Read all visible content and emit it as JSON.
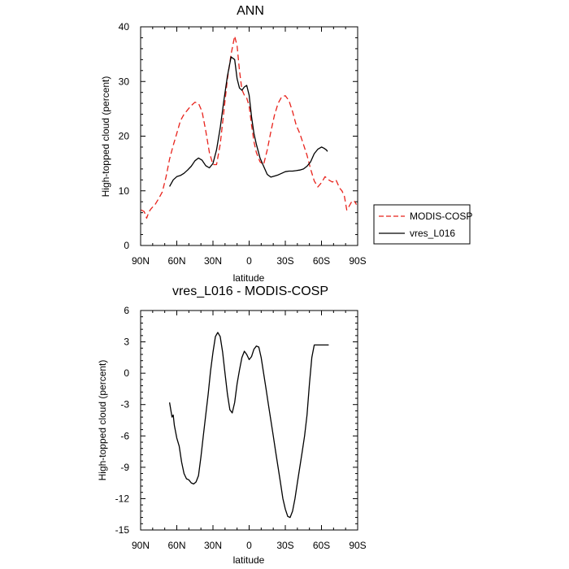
{
  "chart_data": [
    {
      "type": "line",
      "title": "ANN",
      "xlabel": "latitude",
      "ylabel": "High-topped cloud (percent)",
      "xlim": [
        90,
        -90
      ],
      "ylim": [
        0,
        40
      ],
      "x_ticks": [
        90,
        60,
        30,
        0,
        -30,
        -60,
        -90
      ],
      "x_tick_labels": [
        "90N",
        "60N",
        "30N",
        "0",
        "30S",
        "60S",
        "90S"
      ],
      "y_ticks": [
        0,
        10,
        20,
        30,
        40
      ],
      "y_tick_labels": [
        "0",
        "10",
        "20",
        "30",
        "40"
      ],
      "legend": {
        "placement": "right",
        "entries": [
          "MODIS-COSP",
          "vres_L016"
        ]
      },
      "series": [
        {
          "name": "MODIS-COSP",
          "color": "#e8221b",
          "dash": "dashed",
          "x": [
            89.5,
            87,
            85,
            83,
            81,
            78,
            75,
            72,
            69,
            66,
            63,
            60,
            57,
            54,
            51,
            48,
            45,
            42,
            39,
            36,
            33,
            30,
            27,
            24,
            21,
            18,
            15,
            12,
            10,
            8,
            6,
            4,
            2,
            0,
            -2,
            -4,
            -6,
            -9,
            -12,
            -15,
            -18,
            -21,
            -24,
            -27,
            -30,
            -33,
            -36,
            -39,
            -42,
            -45,
            -48,
            -51,
            -54,
            -57,
            -60,
            -63,
            -66,
            -69,
            -72,
            -75,
            -77,
            -79,
            -81,
            -83,
            -85,
            -87,
            -89
          ],
          "y": [
            6.5,
            6.2,
            5.0,
            6.2,
            6.8,
            7.5,
            8.6,
            9.8,
            12.5,
            15.8,
            18.3,
            20.5,
            22.8,
            24.0,
            24.8,
            25.6,
            26.2,
            26.0,
            24.5,
            21.0,
            17.0,
            14.8,
            14.8,
            18.5,
            24.5,
            30.5,
            35.0,
            38.3,
            36.5,
            32.0,
            28.5,
            27.5,
            27.0,
            25.5,
            22.0,
            19.0,
            17.0,
            15.3,
            14.8,
            17.5,
            20.8,
            23.8,
            26.0,
            27.2,
            27.4,
            26.5,
            24.5,
            22.0,
            20.5,
            18.5,
            16.5,
            14.0,
            11.8,
            10.7,
            11.5,
            12.6,
            12.0,
            11.6,
            12.0,
            10.5,
            10.0,
            9.0,
            6.5,
            7.2,
            8.0,
            8.2,
            7.5
          ]
        },
        {
          "name": "vres_L016",
          "color": "#000000",
          "dash": "solid",
          "x": [
            66,
            63,
            60,
            57,
            54,
            51,
            48,
            45,
            42,
            39,
            36,
            33,
            30,
            27,
            24,
            21,
            18,
            15,
            12,
            10,
            8,
            6,
            4,
            2,
            0,
            -2,
            -4,
            -6,
            -9,
            -12,
            -15,
            -18,
            -21,
            -24,
            -27,
            -30,
            -33,
            -36,
            -39,
            -42,
            -45,
            -48,
            -51,
            -54,
            -57,
            -60,
            -62,
            -64,
            -65
          ],
          "y": [
            10.8,
            12.0,
            12.6,
            12.8,
            13.2,
            13.8,
            14.5,
            15.5,
            16.0,
            15.6,
            14.6,
            14.2,
            15.0,
            17.5,
            21.5,
            26.5,
            31.0,
            34.5,
            34.0,
            30.5,
            28.8,
            28.4,
            29.0,
            29.3,
            27.5,
            23.5,
            20.5,
            18.5,
            16.0,
            14.5,
            13.0,
            12.5,
            12.7,
            12.9,
            13.2,
            13.5,
            13.6,
            13.6,
            13.7,
            13.8,
            14.0,
            14.5,
            15.3,
            16.8,
            17.6,
            18.0,
            17.8,
            17.5,
            17.2
          ]
        }
      ]
    },
    {
      "type": "line",
      "title": "vres_L016 - MODIS-COSP",
      "xlabel": "latitude",
      "ylabel": "High-topped cloud (percent)",
      "xlim": [
        90,
        -90
      ],
      "ylim": [
        -15,
        6
      ],
      "x_ticks": [
        90,
        60,
        30,
        0,
        -30,
        -60,
        -90
      ],
      "x_tick_labels": [
        "90N",
        "60N",
        "30N",
        "0",
        "30S",
        "60S",
        "90S"
      ],
      "y_ticks": [
        -15,
        -12,
        -9,
        -6,
        -3,
        0,
        3,
        6
      ],
      "y_tick_labels": [
        "-15",
        "-12",
        "-9",
        "-6",
        "-3",
        "0",
        "3",
        "6"
      ],
      "series": [
        {
          "name": "vres_L016 - MODIS-COSP",
          "color": "#000000",
          "dash": "solid",
          "x": [
            66,
            64,
            63,
            62,
            60,
            58,
            56,
            54,
            52,
            50,
            48,
            46,
            44,
            42,
            40,
            38,
            36,
            34,
            32,
            30,
            28,
            26,
            24,
            22,
            20,
            18,
            16,
            14,
            12,
            10,
            8,
            6,
            4,
            2,
            0,
            -2,
            -4,
            -6,
            -8,
            -10,
            -12,
            -14,
            -16,
            -18,
            -20,
            -22,
            -24,
            -26,
            -28,
            -30,
            -32,
            -34,
            -36,
            -38,
            -40,
            -42,
            -44,
            -46,
            -48,
            -50,
            -52,
            -54,
            -56,
            -58,
            -60,
            -62,
            -64,
            -66
          ],
          "y": [
            -2.8,
            -4.2,
            -4.0,
            -5.0,
            -6.2,
            -7.0,
            -8.5,
            -9.6,
            -10.1,
            -10.2,
            -10.5,
            -10.6,
            -10.4,
            -9.8,
            -8.0,
            -6.0,
            -4.0,
            -2.0,
            0.2,
            2.0,
            3.5,
            3.9,
            3.5,
            2.0,
            0.0,
            -2.0,
            -3.5,
            -3.8,
            -2.8,
            -1.0,
            0.3,
            1.5,
            2.1,
            1.8,
            1.3,
            1.6,
            2.3,
            2.6,
            2.5,
            1.5,
            0.0,
            -1.5,
            -3.0,
            -4.5,
            -6.0,
            -7.5,
            -9.0,
            -10.5,
            -12.0,
            -13.0,
            -13.7,
            -13.8,
            -13.2,
            -12.0,
            -10.5,
            -9.0,
            -7.5,
            -6.0,
            -4.0,
            -1.0,
            1.5,
            2.7,
            2.7,
            2.7,
            2.7,
            2.7,
            2.7,
            2.7
          ]
        }
      ]
    }
  ]
}
